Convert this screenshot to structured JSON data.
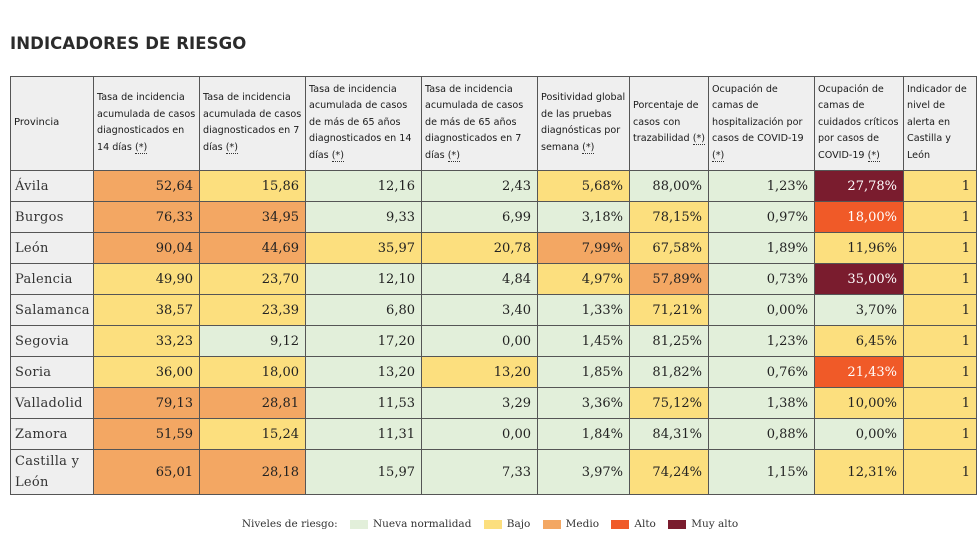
{
  "title": "INDICADORES DE RIESGO",
  "columns": [
    {
      "pre": "Provincia",
      "star": ""
    },
    {
      "pre": "Tasa de incidencia acumulada de casos diagnosticados en 14 días ",
      "star": "(*)"
    },
    {
      "pre": "Tasa de incidencia acumulada de casos diagnosticados en 7 días ",
      "star": "(*)"
    },
    {
      "pre": "Tasa de incidencia acumulada de casos de más de 65 años diagnosticados en 14 días ",
      "star": "(*)"
    },
    {
      "pre": "Tasa de incidencia acumulada de casos de más de 65 años diagnosticados en 7 días ",
      "star": "(*)"
    },
    {
      "pre": "Positividad global de las pruebas diagnósticas por semana ",
      "star": "(*)"
    },
    {
      "pre": "Porcentaje de casos con trazabilidad ",
      "star": "(*)"
    },
    {
      "pre": "Ocupación de camas de hospitalización por casos de COVID-19 ",
      "star": "(*)"
    },
    {
      "pre": "Ocupación de camas de cuidados críticos por casos de COVID-19 ",
      "star": "(*)"
    },
    {
      "pre": "Indicador de nivel de alerta en Castilla y León",
      "star": ""
    }
  ],
  "rows": [
    {
      "provincia": "Ávila",
      "cells": [
        {
          "v": "52,64",
          "l": "m"
        },
        {
          "v": "15,86",
          "l": "b"
        },
        {
          "v": "12,16",
          "l": "nn"
        },
        {
          "v": "2,43",
          "l": "nn"
        },
        {
          "v": "5,68%",
          "l": "b"
        },
        {
          "v": "88,00%",
          "l": "nn"
        },
        {
          "v": "1,23%",
          "l": "nn"
        },
        {
          "v": "27,78%",
          "l": "ma"
        },
        {
          "v": "1",
          "l": "b"
        }
      ]
    },
    {
      "provincia": "Burgos",
      "cells": [
        {
          "v": "76,33",
          "l": "m"
        },
        {
          "v": "34,95",
          "l": "m"
        },
        {
          "v": "9,33",
          "l": "nn"
        },
        {
          "v": "6,99",
          "l": "nn"
        },
        {
          "v": "3,18%",
          "l": "nn"
        },
        {
          "v": "78,15%",
          "l": "b"
        },
        {
          "v": "0,97%",
          "l": "nn"
        },
        {
          "v": "18,00%",
          "l": "a"
        },
        {
          "v": "1",
          "l": "b"
        }
      ]
    },
    {
      "provincia": "León",
      "cells": [
        {
          "v": "90,04",
          "l": "m"
        },
        {
          "v": "44,69",
          "l": "m"
        },
        {
          "v": "35,97",
          "l": "b"
        },
        {
          "v": "20,78",
          "l": "b"
        },
        {
          "v": "7,99%",
          "l": "m"
        },
        {
          "v": "67,58%",
          "l": "b"
        },
        {
          "v": "1,89%",
          "l": "nn"
        },
        {
          "v": "11,96%",
          "l": "b"
        },
        {
          "v": "1",
          "l": "b"
        }
      ]
    },
    {
      "provincia": "Palencia",
      "cells": [
        {
          "v": "49,90",
          "l": "b"
        },
        {
          "v": "23,70",
          "l": "b"
        },
        {
          "v": "12,10",
          "l": "nn"
        },
        {
          "v": "4,84",
          "l": "nn"
        },
        {
          "v": "4,97%",
          "l": "b"
        },
        {
          "v": "57,89%",
          "l": "m"
        },
        {
          "v": "0,73%",
          "l": "nn"
        },
        {
          "v": "35,00%",
          "l": "ma"
        },
        {
          "v": "1",
          "l": "b"
        }
      ]
    },
    {
      "provincia": "Salamanca",
      "cells": [
        {
          "v": "38,57",
          "l": "b"
        },
        {
          "v": "23,39",
          "l": "b"
        },
        {
          "v": "6,80",
          "l": "nn"
        },
        {
          "v": "3,40",
          "l": "nn"
        },
        {
          "v": "1,33%",
          "l": "nn"
        },
        {
          "v": "71,21%",
          "l": "b"
        },
        {
          "v": "0,00%",
          "l": "nn"
        },
        {
          "v": "3,70%",
          "l": "nn"
        },
        {
          "v": "1",
          "l": "b"
        }
      ]
    },
    {
      "provincia": "Segovia",
      "cells": [
        {
          "v": "33,23",
          "l": "b"
        },
        {
          "v": "9,12",
          "l": "nn"
        },
        {
          "v": "17,20",
          "l": "nn"
        },
        {
          "v": "0,00",
          "l": "nn"
        },
        {
          "v": "1,45%",
          "l": "nn"
        },
        {
          "v": "81,25%",
          "l": "nn"
        },
        {
          "v": "1,23%",
          "l": "nn"
        },
        {
          "v": "6,45%",
          "l": "b"
        },
        {
          "v": "1",
          "l": "b"
        }
      ]
    },
    {
      "provincia": "Soria",
      "cells": [
        {
          "v": "36,00",
          "l": "b"
        },
        {
          "v": "18,00",
          "l": "b"
        },
        {
          "v": "13,20",
          "l": "nn"
        },
        {
          "v": "13,20",
          "l": "b"
        },
        {
          "v": "1,85%",
          "l": "nn"
        },
        {
          "v": "81,82%",
          "l": "nn"
        },
        {
          "v": "0,76%",
          "l": "nn"
        },
        {
          "v": "21,43%",
          "l": "a"
        },
        {
          "v": "1",
          "l": "b"
        }
      ]
    },
    {
      "provincia": "Valladolid",
      "cells": [
        {
          "v": "79,13",
          "l": "m"
        },
        {
          "v": "28,81",
          "l": "m"
        },
        {
          "v": "11,53",
          "l": "nn"
        },
        {
          "v": "3,29",
          "l": "nn"
        },
        {
          "v": "3,36%",
          "l": "nn"
        },
        {
          "v": "75,12%",
          "l": "b"
        },
        {
          "v": "1,38%",
          "l": "nn"
        },
        {
          "v": "10,00%",
          "l": "b"
        },
        {
          "v": "1",
          "l": "b"
        }
      ]
    },
    {
      "provincia": "Zamora",
      "cells": [
        {
          "v": "51,59",
          "l": "m"
        },
        {
          "v": "15,24",
          "l": "b"
        },
        {
          "v": "11,31",
          "l": "nn"
        },
        {
          "v": "0,00",
          "l": "nn"
        },
        {
          "v": "1,84%",
          "l": "nn"
        },
        {
          "v": "84,31%",
          "l": "nn"
        },
        {
          "v": "0,88%",
          "l": "nn"
        },
        {
          "v": "0,00%",
          "l": "nn"
        },
        {
          "v": "1",
          "l": "b"
        }
      ]
    },
    {
      "provincia": "Castilla y León",
      "cells": [
        {
          "v": "65,01",
          "l": "m"
        },
        {
          "v": "28,18",
          "l": "m"
        },
        {
          "v": "15,97",
          "l": "nn"
        },
        {
          "v": "7,33",
          "l": "nn"
        },
        {
          "v": "3,97%",
          "l": "nn"
        },
        {
          "v": "74,24%",
          "l": "b"
        },
        {
          "v": "1,15%",
          "l": "nn"
        },
        {
          "v": "12,31%",
          "l": "b"
        },
        {
          "v": "1",
          "l": "b"
        }
      ]
    }
  ],
  "legend": {
    "label": "Niveles de riesgo:",
    "items": [
      {
        "key": "nn",
        "text": "Nueva normalidad",
        "color": "#e2efda"
      },
      {
        "key": "b",
        "text": "Bajo",
        "color": "#fcdf7e"
      },
      {
        "key": "m",
        "text": "Medio",
        "color": "#f3a763"
      },
      {
        "key": "a",
        "text": "Alto",
        "color": "#f05a28"
      },
      {
        "key": "ma",
        "text": "Muy alto",
        "color": "#7a1c2e"
      }
    ]
  }
}
